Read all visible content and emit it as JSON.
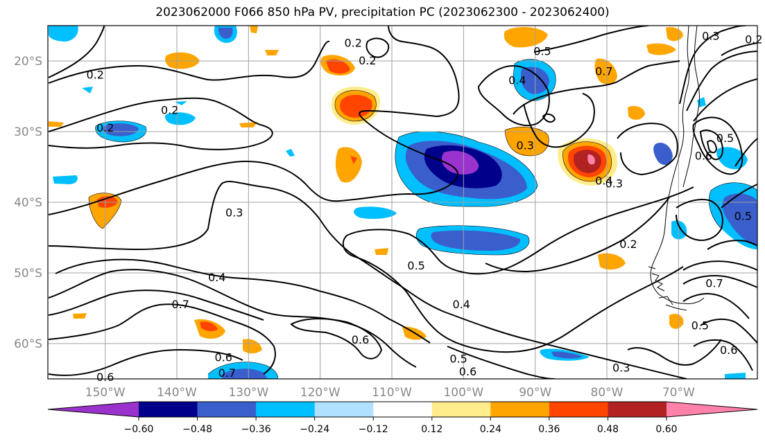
{
  "title": "2023062000 F066 850 hPa PV, precipitation PC (2023062300 - 2023062400)",
  "chart_data": {
    "type": "contour-map",
    "map": {
      "lon_range": [
        -158,
        -59
      ],
      "lat_range": [
        -65,
        -15
      ],
      "x_ticks": [
        {
          "lon": -150,
          "label": "150°W"
        },
        {
          "lon": -140,
          "label": "140°W"
        },
        {
          "lon": -130,
          "label": "130°W"
        },
        {
          "lon": -120,
          "label": "120°W"
        },
        {
          "lon": -110,
          "label": "110°W"
        },
        {
          "lon": -100,
          "label": "100°W"
        },
        {
          "lon": -90,
          "label": "90°W"
        },
        {
          "lon": -80,
          "label": "80°W"
        },
        {
          "lon": -70,
          "label": "70°W"
        }
      ],
      "y_ticks": [
        {
          "lat": -20,
          "label": "20°S"
        },
        {
          "lat": -30,
          "label": "30°S"
        },
        {
          "lat": -40,
          "label": "40°S"
        },
        {
          "lat": -50,
          "label": "50°S"
        },
        {
          "lat": -60,
          "label": "60°S"
        }
      ],
      "grid": true
    },
    "colorbar": {
      "orientation": "horizontal",
      "extend": "both",
      "colors": [
        "#9a32cd",
        "#00008b",
        "#3a5fcd",
        "#00bfff",
        "#b0e2ff",
        "#ffffff",
        "#ffec8b",
        "#ffa500",
        "#ff4500",
        "#b22222",
        "#ff82ab"
      ],
      "boundaries": [
        "−0.60",
        "−0.48",
        "−0.36",
        "−0.24",
        "−0.12",
        "0.12",
        "0.24",
        "0.36",
        "0.48",
        "0.60"
      ]
    },
    "pv_contour_labels": [
      {
        "text": "0.2",
        "lon": -115.4,
        "lat": -17.5
      },
      {
        "text": "0.2",
        "lon": -113.4,
        "lat": -20.0
      },
      {
        "text": "0.2",
        "lon": -151.4,
        "lat": -22.0
      },
      {
        "text": "0.2",
        "lon": -141.0,
        "lat": -27.0
      },
      {
        "text": "0.2",
        "lon": -150.0,
        "lat": -29.5
      },
      {
        "text": "0.5",
        "lon": -89.0,
        "lat": -18.7
      },
      {
        "text": "0.7",
        "lon": -80.4,
        "lat": -21.5
      },
      {
        "text": "0.4",
        "lon": -92.5,
        "lat": -22.8
      },
      {
        "text": "0.3",
        "lon": -91.4,
        "lat": -32.0
      },
      {
        "text": "0.4",
        "lon": -80.4,
        "lat": -37.0
      },
      {
        "text": "0.3",
        "lon": -79.0,
        "lat": -37.4
      },
      {
        "text": "0.6",
        "lon": -66.5,
        "lat": -33.5
      },
      {
        "text": "0.5",
        "lon": -63.5,
        "lat": -31.0
      },
      {
        "text": "0.2",
        "lon": -77.0,
        "lat": -46.0
      },
      {
        "text": "0.5",
        "lon": -61.0,
        "lat": -42.0
      },
      {
        "text": "0.3",
        "lon": -132.0,
        "lat": -41.5
      },
      {
        "text": "0.5",
        "lon": -106.6,
        "lat": -49.0
      },
      {
        "text": "0.4",
        "lon": -134.4,
        "lat": -50.7
      },
      {
        "text": "0.7",
        "lon": -139.5,
        "lat": -54.5
      },
      {
        "text": "0.4",
        "lon": -100.3,
        "lat": -54.5
      },
      {
        "text": "0.6",
        "lon": -114.4,
        "lat": -59.5
      },
      {
        "text": "0.5",
        "lon": -100.7,
        "lat": -62.2
      },
      {
        "text": "0.6",
        "lon": -99.4,
        "lat": -64.0
      },
      {
        "text": "0.6",
        "lon": -150.0,
        "lat": -64.8
      },
      {
        "text": "0.6",
        "lon": -133.5,
        "lat": -62.0
      },
      {
        "text": "0.7",
        "lon": -133.0,
        "lat": -64.2
      },
      {
        "text": "0.3",
        "lon": -78.0,
        "lat": -63.5
      },
      {
        "text": "0.3",
        "lon": -65.5,
        "lat": -16.5
      },
      {
        "text": "0.2",
        "lon": -59.5,
        "lat": -17.0
      },
      {
        "text": "0.7",
        "lon": -65.0,
        "lat": -51.5
      },
      {
        "text": "0.5",
        "lon": -67.0,
        "lat": -57.5
      },
      {
        "text": "0.6",
        "lon": -63.0,
        "lat": -61.0
      }
    ]
  }
}
